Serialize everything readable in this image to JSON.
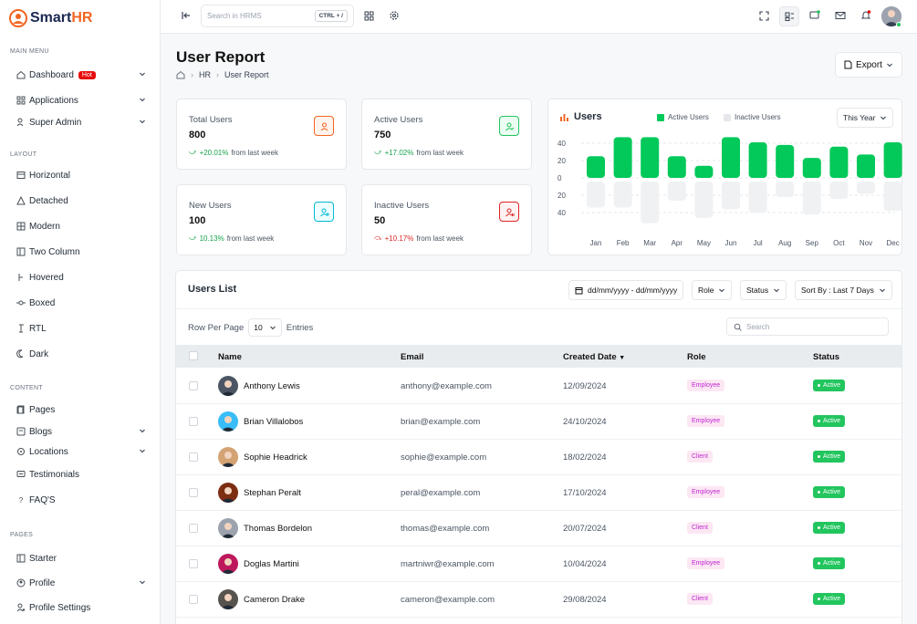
{
  "brand": {
    "name_main": "Smart",
    "name_accent": "HR",
    "accent": "#f26522"
  },
  "sidebar": {
    "sections": [
      {
        "label": "MAIN MENU"
      },
      {
        "label": "LAYOUT"
      },
      {
        "label": "CONTENT"
      },
      {
        "label": "PAGES"
      }
    ],
    "items": [
      {
        "label": "Dashboard",
        "icon": "home-icon",
        "badge": "Hot",
        "chevron": true
      },
      {
        "label": "Applications",
        "icon": "apps-icon",
        "chevron": true
      },
      {
        "label": "Super Admin",
        "icon": "user-shield-icon",
        "chevron": true
      },
      {
        "label": "Horizontal",
        "icon": "layout-horizontal-icon"
      },
      {
        "label": "Detached",
        "icon": "triangle-icon"
      },
      {
        "label": "Modern",
        "icon": "grid-icon"
      },
      {
        "label": "Two Column",
        "icon": "columns-icon"
      },
      {
        "label": "Hovered",
        "icon": "hover-icon"
      },
      {
        "label": "Boxed",
        "icon": "box-icon"
      },
      {
        "label": "RTL",
        "icon": "rtl-icon"
      },
      {
        "label": "Dark",
        "icon": "moon-icon"
      },
      {
        "label": "Pages",
        "icon": "pages-icon"
      },
      {
        "label": "Blogs",
        "icon": "blog-icon",
        "chevron": true
      },
      {
        "label": "Locations",
        "icon": "location-icon",
        "chevron": true
      },
      {
        "label": "Testimonials",
        "icon": "message-icon"
      },
      {
        "label": "FAQ'S",
        "icon": "question-icon"
      },
      {
        "label": "Starter",
        "icon": "starter-icon"
      },
      {
        "label": "Profile",
        "icon": "profile-icon",
        "chevron": true
      },
      {
        "label": "Profile Settings",
        "icon": "profile-settings-icon"
      }
    ]
  },
  "topbar": {
    "search_placeholder": "Search in HRMS",
    "shortcut": "CTRL + /"
  },
  "page": {
    "title": "User Report",
    "breadcrumb": [
      "HR",
      "User Report"
    ],
    "export_label": "Export"
  },
  "stats": [
    {
      "label": "Total Users",
      "value": "800",
      "change": "+20.01%",
      "suffix": "from last week",
      "trend": "up",
      "color": "#f26522"
    },
    {
      "label": "Active Users",
      "value": "750",
      "change": "+17.02%",
      "suffix": "from last week",
      "trend": "up",
      "color": "#22c55e"
    },
    {
      "label": "New Users",
      "value": "100",
      "change": "10.13%",
      "suffix": "from last week",
      "trend": "up",
      "color": "#06b6d4"
    },
    {
      "label": "Inactive Users",
      "value": "50",
      "change": "+10.17%",
      "suffix": "from last week",
      "trend": "down",
      "color": "#dc2626"
    }
  ],
  "chart_data": {
    "type": "bar",
    "title": "Users",
    "period": "This Year",
    "categories": [
      "Jan",
      "Feb",
      "Mar",
      "Apr",
      "May",
      "Jun",
      "Jul",
      "Aug",
      "Sep",
      "Oct",
      "Nov",
      "Dec"
    ],
    "series": [
      {
        "name": "Active Users",
        "color": "#03c95a",
        "values": [
          25,
          47,
          47,
          25,
          14,
          47,
          41,
          38,
          23,
          36,
          27,
          41
        ]
      },
      {
        "name": "Inactive Users",
        "color": "#e5e7eb",
        "values": [
          -30,
          -30,
          -48,
          -22,
          -42,
          -32,
          -36,
          -18,
          -38,
          -20,
          -14,
          -34
        ]
      }
    ],
    "yticks": [
      "40",
      "20",
      "0",
      "20",
      "40"
    ],
    "ylim": [
      -60,
      60
    ]
  },
  "users_list": {
    "title": "Users List",
    "date_range": "dd/mm/yyyy - dd/mm/yyyy",
    "role_filter": "Role",
    "status_filter": "Status",
    "sort_label": "Sort By : Last 7 Days",
    "rows_per_page_label": "Row Per Page",
    "rows_per_page": "10",
    "entries_label": "Entries",
    "search_placeholder": "Search",
    "columns": [
      "Name",
      "Email",
      "Created Date",
      "Role",
      "Status"
    ],
    "rows": [
      {
        "name": "Anthony Lewis",
        "email": "anthony@example.com",
        "date": "12/09/2024",
        "role": "Employee",
        "status": "Active",
        "avatar_color": "#4b5563"
      },
      {
        "name": "Brian Villalobos",
        "email": "brian@example.com",
        "date": "24/10/2024",
        "role": "Employee",
        "status": "Active",
        "avatar_color": "#38bdf8"
      },
      {
        "name": "Sophie Headrick",
        "email": "sophie@example.com",
        "date": "18/02/2024",
        "role": "Client",
        "status": "Active",
        "avatar_color": "#d4a373"
      },
      {
        "name": "Stephan Peralt",
        "email": "peral@example.com",
        "date": "17/10/2024",
        "role": "Employee",
        "status": "Active",
        "avatar_color": "#7c2d12"
      },
      {
        "name": "Thomas Bordelon",
        "email": "thomas@example.com",
        "date": "20/07/2024",
        "role": "Client",
        "status": "Active",
        "avatar_color": "#9ca3af"
      },
      {
        "name": "Doglas Martini",
        "email": "martniwr@example.com",
        "date": "10/04/2024",
        "role": "Employee",
        "status": "Active",
        "avatar_color": "#be185d"
      },
      {
        "name": "Cameron Drake",
        "email": "cameron@example.com",
        "date": "29/08/2024",
        "role": "Client",
        "status": "Active",
        "avatar_color": "#57534e"
      }
    ]
  }
}
